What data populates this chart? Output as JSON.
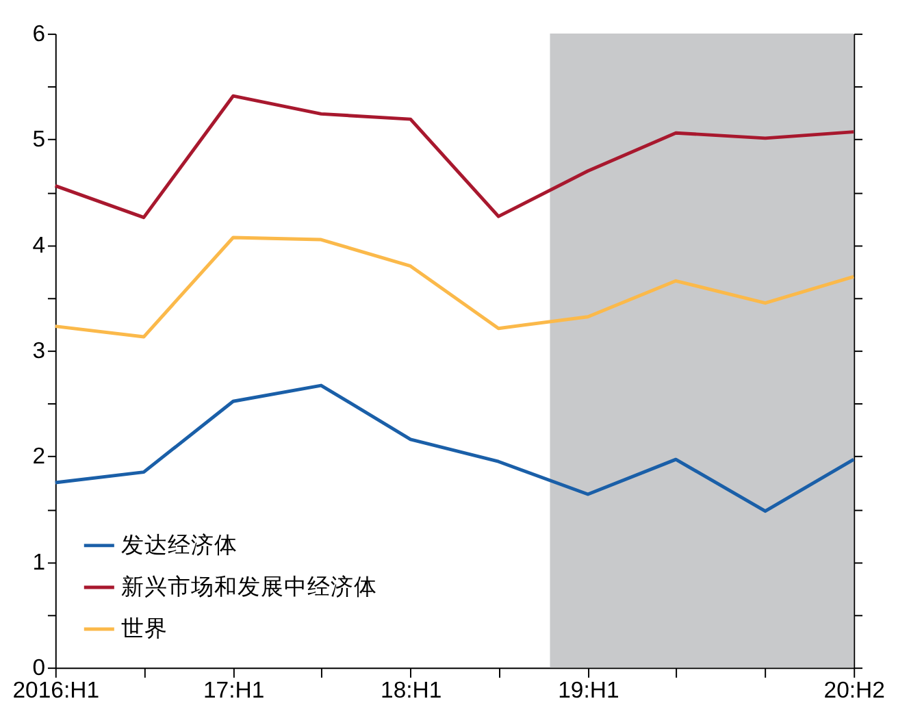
{
  "chart_data": {
    "type": "line",
    "x": [
      "2016-01",
      "2016-07",
      "2017-01",
      "2017-07",
      "2018-01",
      "2018-07",
      "2019-01",
      "2019-07",
      "2020-01",
      "2020-07"
    ],
    "series": [
      {
        "name": "发达经济体",
        "color": "#1a5fa8",
        "values": [
          1.75,
          1.85,
          2.52,
          2.67,
          2.16,
          1.95,
          1.64,
          1.97,
          1.48,
          1.97
        ]
      },
      {
        "name": "新兴市场和发展中经济体",
        "color": "#a8182e",
        "values": [
          4.56,
          4.26,
          5.41,
          5.24,
          5.19,
          4.27,
          4.7,
          5.06,
          5.01,
          5.07
        ]
      },
      {
        "name": "世界",
        "color": "#fbb94a",
        "values": [
          3.23,
          3.13,
          4.07,
          4.05,
          3.8,
          3.21,
          3.32,
          3.66,
          3.45,
          3.7
        ]
      }
    ],
    "xlim": [
      "2016-01",
      "2020-07"
    ],
    "xticks": [
      {
        "value": "2016-01",
        "label": "2016:H1"
      },
      {
        "value": "2016-07",
        "label": null
      },
      {
        "value": "2017-01",
        "label": "17:H1"
      },
      {
        "value": "2017-07",
        "label": null
      },
      {
        "value": "2018-01",
        "label": "18:H1"
      },
      {
        "value": "2018-07",
        "label": null
      },
      {
        "value": "2019-01",
        "label": "19:H1"
      },
      {
        "value": "2019-07",
        "label": null
      },
      {
        "value": "2020-01",
        "label": null
      },
      {
        "value": "2020-07",
        "label": "20:H2"
      }
    ],
    "ylim": [
      0,
      6
    ],
    "yticks": [
      0,
      {
        "value": 0.5,
        "label": null
      },
      1,
      {
        "value": 1.5,
        "label": null
      },
      2,
      {
        "value": 2.5,
        "label": null
      },
      3,
      {
        "value": 3.5,
        "label": null
      },
      4,
      {
        "value": 4.5,
        "label": null
      },
      5,
      {
        "value": 5.5,
        "label": null
      },
      6
    ],
    "bands": [
      {
        "axis": "x",
        "from": "2018-10-15",
        "to": "2020-07",
        "color": "#c8c9cb"
      }
    ],
    "legend": "bottom left",
    "grid": false,
    "marker": "none",
    "line_style": "solid"
  }
}
